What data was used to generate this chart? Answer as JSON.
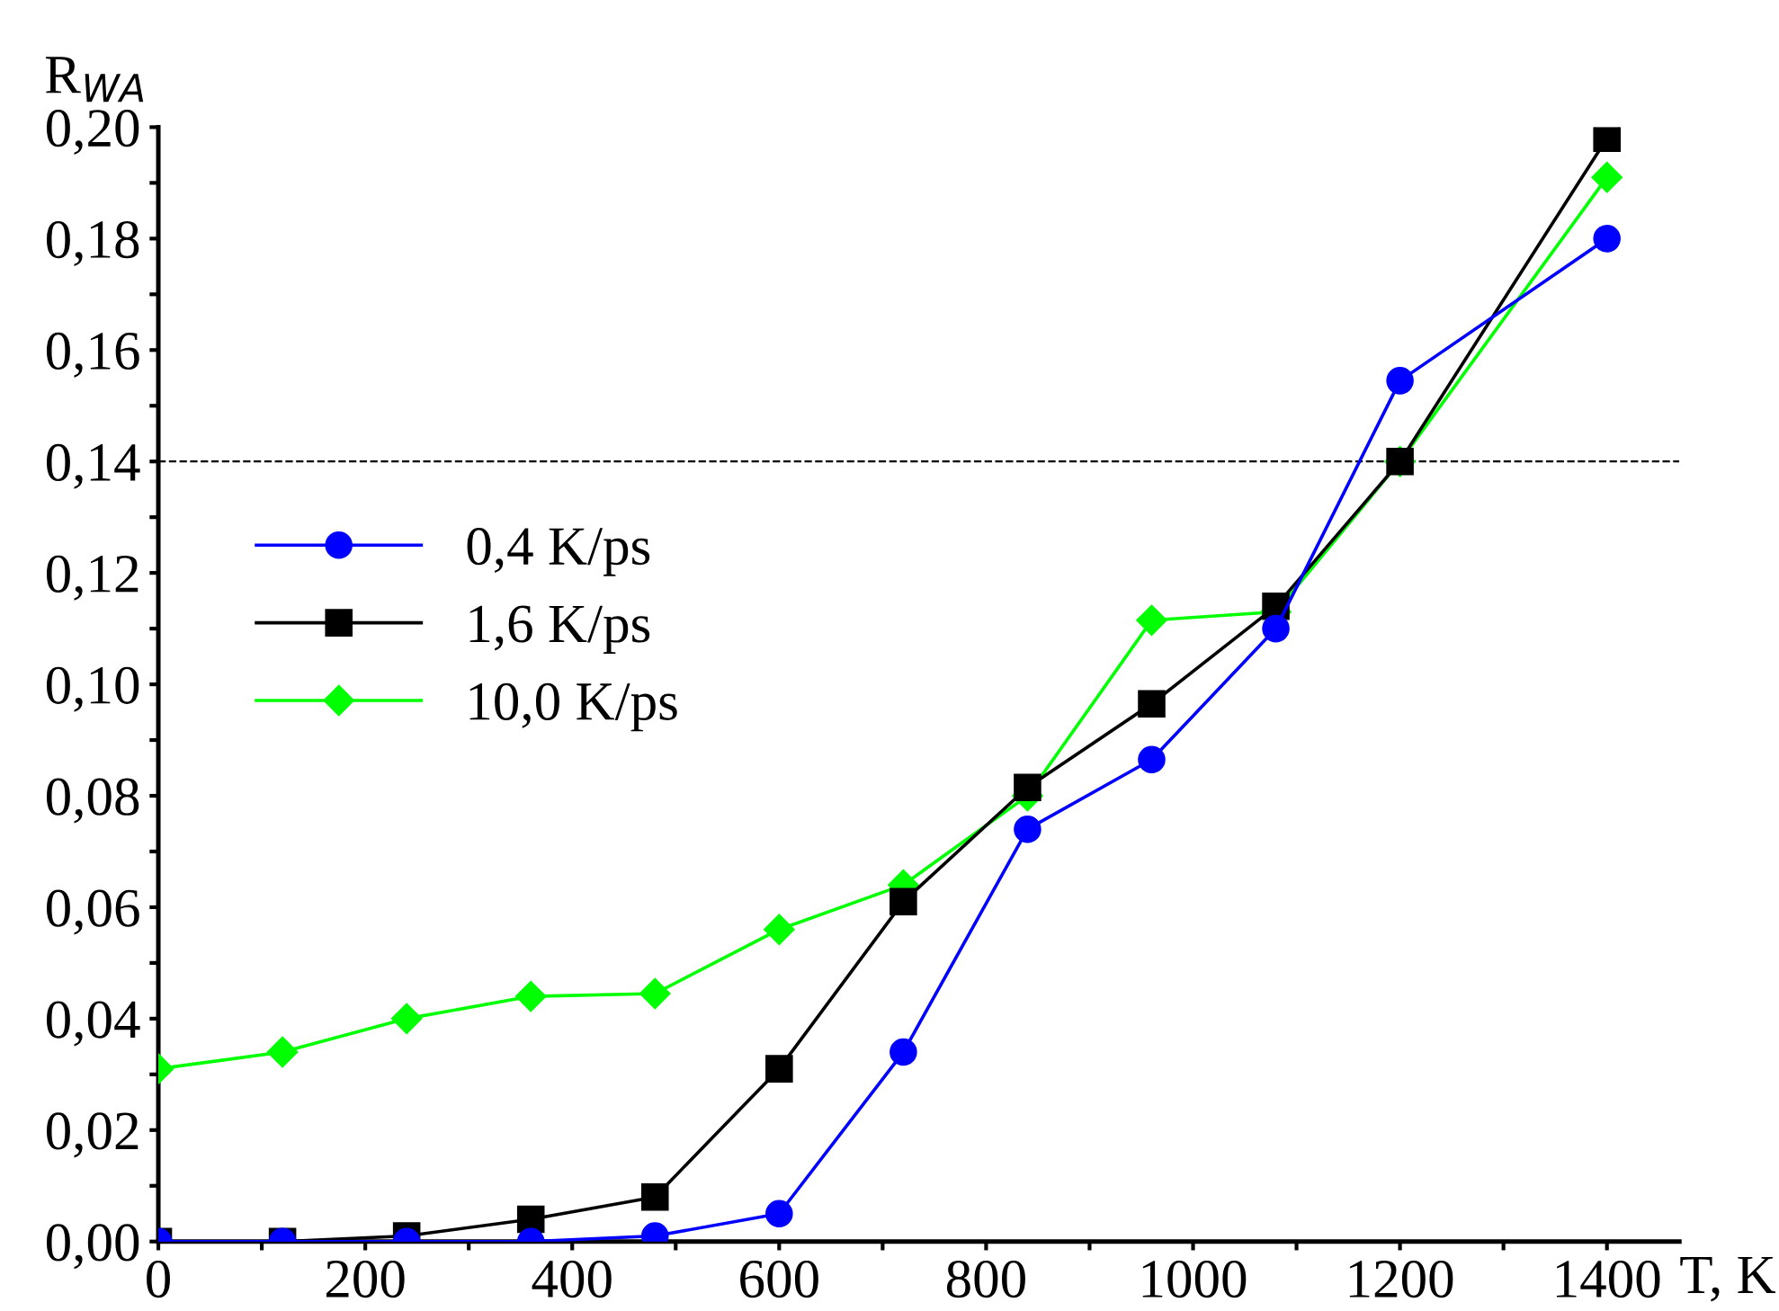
{
  "chart_data": {
    "type": "line",
    "ylabel": "R$_{WA}$",
    "xlabel": "T, K",
    "x": [
      0,
      120,
      240,
      360,
      480,
      600,
      720,
      840,
      960,
      1080,
      1200,
      1400
    ],
    "series": [
      {
        "name": "0,4 K/ps",
        "color": "#0000ff",
        "marker": "circle",
        "values": [
          0,
          0,
          0,
          0,
          0.001,
          0.005,
          0.034,
          0.074,
          0.0865,
          0.11,
          0.1545,
          0.18
        ]
      },
      {
        "name": "1,6 K/ps",
        "color": "#000000",
        "marker": "square",
        "values": [
          0,
          0,
          0.001,
          0.004,
          0.008,
          0.031,
          0.061,
          0.0815,
          0.0965,
          0.114,
          0.14,
          0.198
        ]
      },
      {
        "name": "10,0 K/ps",
        "color": "#00ff00",
        "marker": "diamond",
        "values": [
          0.031,
          0.034,
          0.04,
          0.044,
          0.0445,
          0.056,
          0.064,
          0.08,
          0.1115,
          0.113,
          0.14,
          0.191
        ]
      }
    ],
    "xlim": [
      0,
      1470
    ],
    "ylim": [
      0,
      0.2
    ],
    "xticks": [
      0,
      {
        "value": 100,
        "label": null
      },
      200,
      {
        "value": 300,
        "label": null
      },
      400,
      {
        "value": 500,
        "label": null
      },
      600,
      {
        "value": 700,
        "label": null
      },
      800,
      {
        "value": 900,
        "label": null
      },
      1000,
      {
        "value": 1100,
        "label": null
      },
      1200,
      {
        "value": 1300,
        "label": null
      },
      1400
    ],
    "yticks": [
      {
        "value": 0,
        "label": "0,00"
      },
      {
        "value": 0.01,
        "label": null
      },
      {
        "value": 0.02,
        "label": "0,02"
      },
      {
        "value": 0.03,
        "label": null
      },
      {
        "value": 0.04,
        "label": "0,04"
      },
      {
        "value": 0.05,
        "label": null
      },
      {
        "value": 0.06,
        "label": "0,06"
      },
      {
        "value": 0.07,
        "label": null
      },
      {
        "value": 0.08,
        "label": "0,08"
      },
      {
        "value": 0.09,
        "label": null
      },
      {
        "value": 0.1,
        "label": "0,10"
      },
      {
        "value": 0.11,
        "label": null
      },
      {
        "value": 0.12,
        "label": "0,12"
      },
      {
        "value": 0.13,
        "label": null
      },
      {
        "value": 0.14,
        "label": "0,14"
      },
      {
        "value": 0.15,
        "label": null
      },
      {
        "value": 0.16,
        "label": "0,16"
      },
      {
        "value": 0.17,
        "label": null
      },
      {
        "value": 0.18,
        "label": "0,18"
      },
      {
        "value": 0.19,
        "label": null
      },
      {
        "value": 0.2,
        "label": "0,20"
      }
    ],
    "ref_lines": [
      {
        "axis": "y",
        "value": 0.14,
        "label": null,
        "color": "#000000",
        "line_style": "dashed"
      }
    ],
    "legend": "left",
    "grid": false,
    "line_style": "solid"
  }
}
